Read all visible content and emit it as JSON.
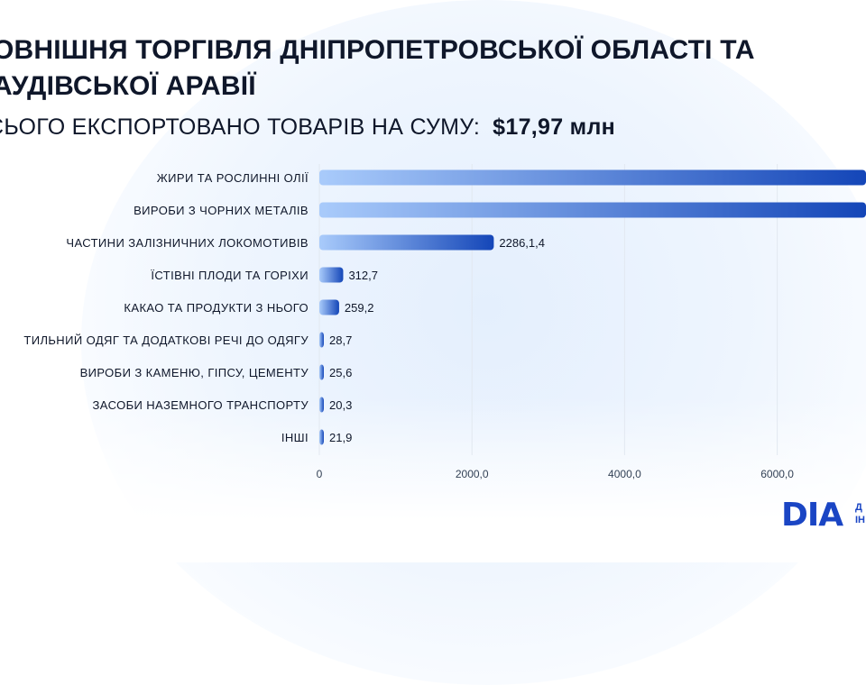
{
  "header": {
    "title_line1": "ОВНІШНЯ ТОРГІВЛЯ ДНІПРОПЕТРОВСЬКОЇ ОБЛАСТІ ТА",
    "title_line2": "АУДІВСЬКОЇ АРАВІЇ",
    "subtitle_prefix": "СЬОГО ЕКСПОРТОВАНО ТОВАРІВ НА СУМУ:",
    "subtitle_amount": "$17,97 млн"
  },
  "logo": {
    "word": "DIA",
    "side_line1": "Д",
    "side_line2": "ІН"
  },
  "colors": {
    "bar_start": "#a9cbfb",
    "bar_end": "#1446b8",
    "grid": "#e2e8f0",
    "text": "#0f172a",
    "tick_text": "#334155"
  },
  "chart_data": {
    "type": "bar",
    "orientation": "horizontal",
    "categories": [
      "ЖИРИ ТА РОСЛИННІ ОЛІЇ",
      "ВИРОБИ З ЧОРНИХ МЕТАЛІВ",
      "ЧАСТИНИ ЗАЛІЗНИЧНИХ ЛОКОМОТИВІВ",
      "ЇСТІВНІ ПЛОДИ ТА ГОРІХИ",
      "КАКАО ТА ПРОДУКТИ З НЬОГО",
      "ТИЛЬНИЙ ОДЯГ ТА ДОДАТКОВІ РЕЧІ ДО ОДЯГУ",
      "ВИРОБИ З КАМЕНЮ, ГІПСУ, ЦЕМЕНТУ",
      "ЗАСОБИ НАЗЕМНОГО ТРАНСПОРТУ",
      "ІНШІ"
    ],
    "values": [
      7300,
      7300,
      2286.1,
      312.7,
      259.2,
      28.7,
      25.6,
      20.3,
      21.9
    ],
    "value_labels": [
      "",
      "",
      "2286,1,4",
      "312,7",
      "259,2",
      "28,7",
      "25,6",
      "20,3",
      "21,9"
    ],
    "x_ticks": [
      0,
      2000,
      4000,
      6000
    ],
    "x_tick_labels": [
      "0",
      "2000,0",
      "4000,0",
      "6000,0"
    ],
    "xlim": [
      0,
      7300
    ],
    "grid": "vertical",
    "title": "",
    "xlabel": "",
    "ylabel": ""
  }
}
